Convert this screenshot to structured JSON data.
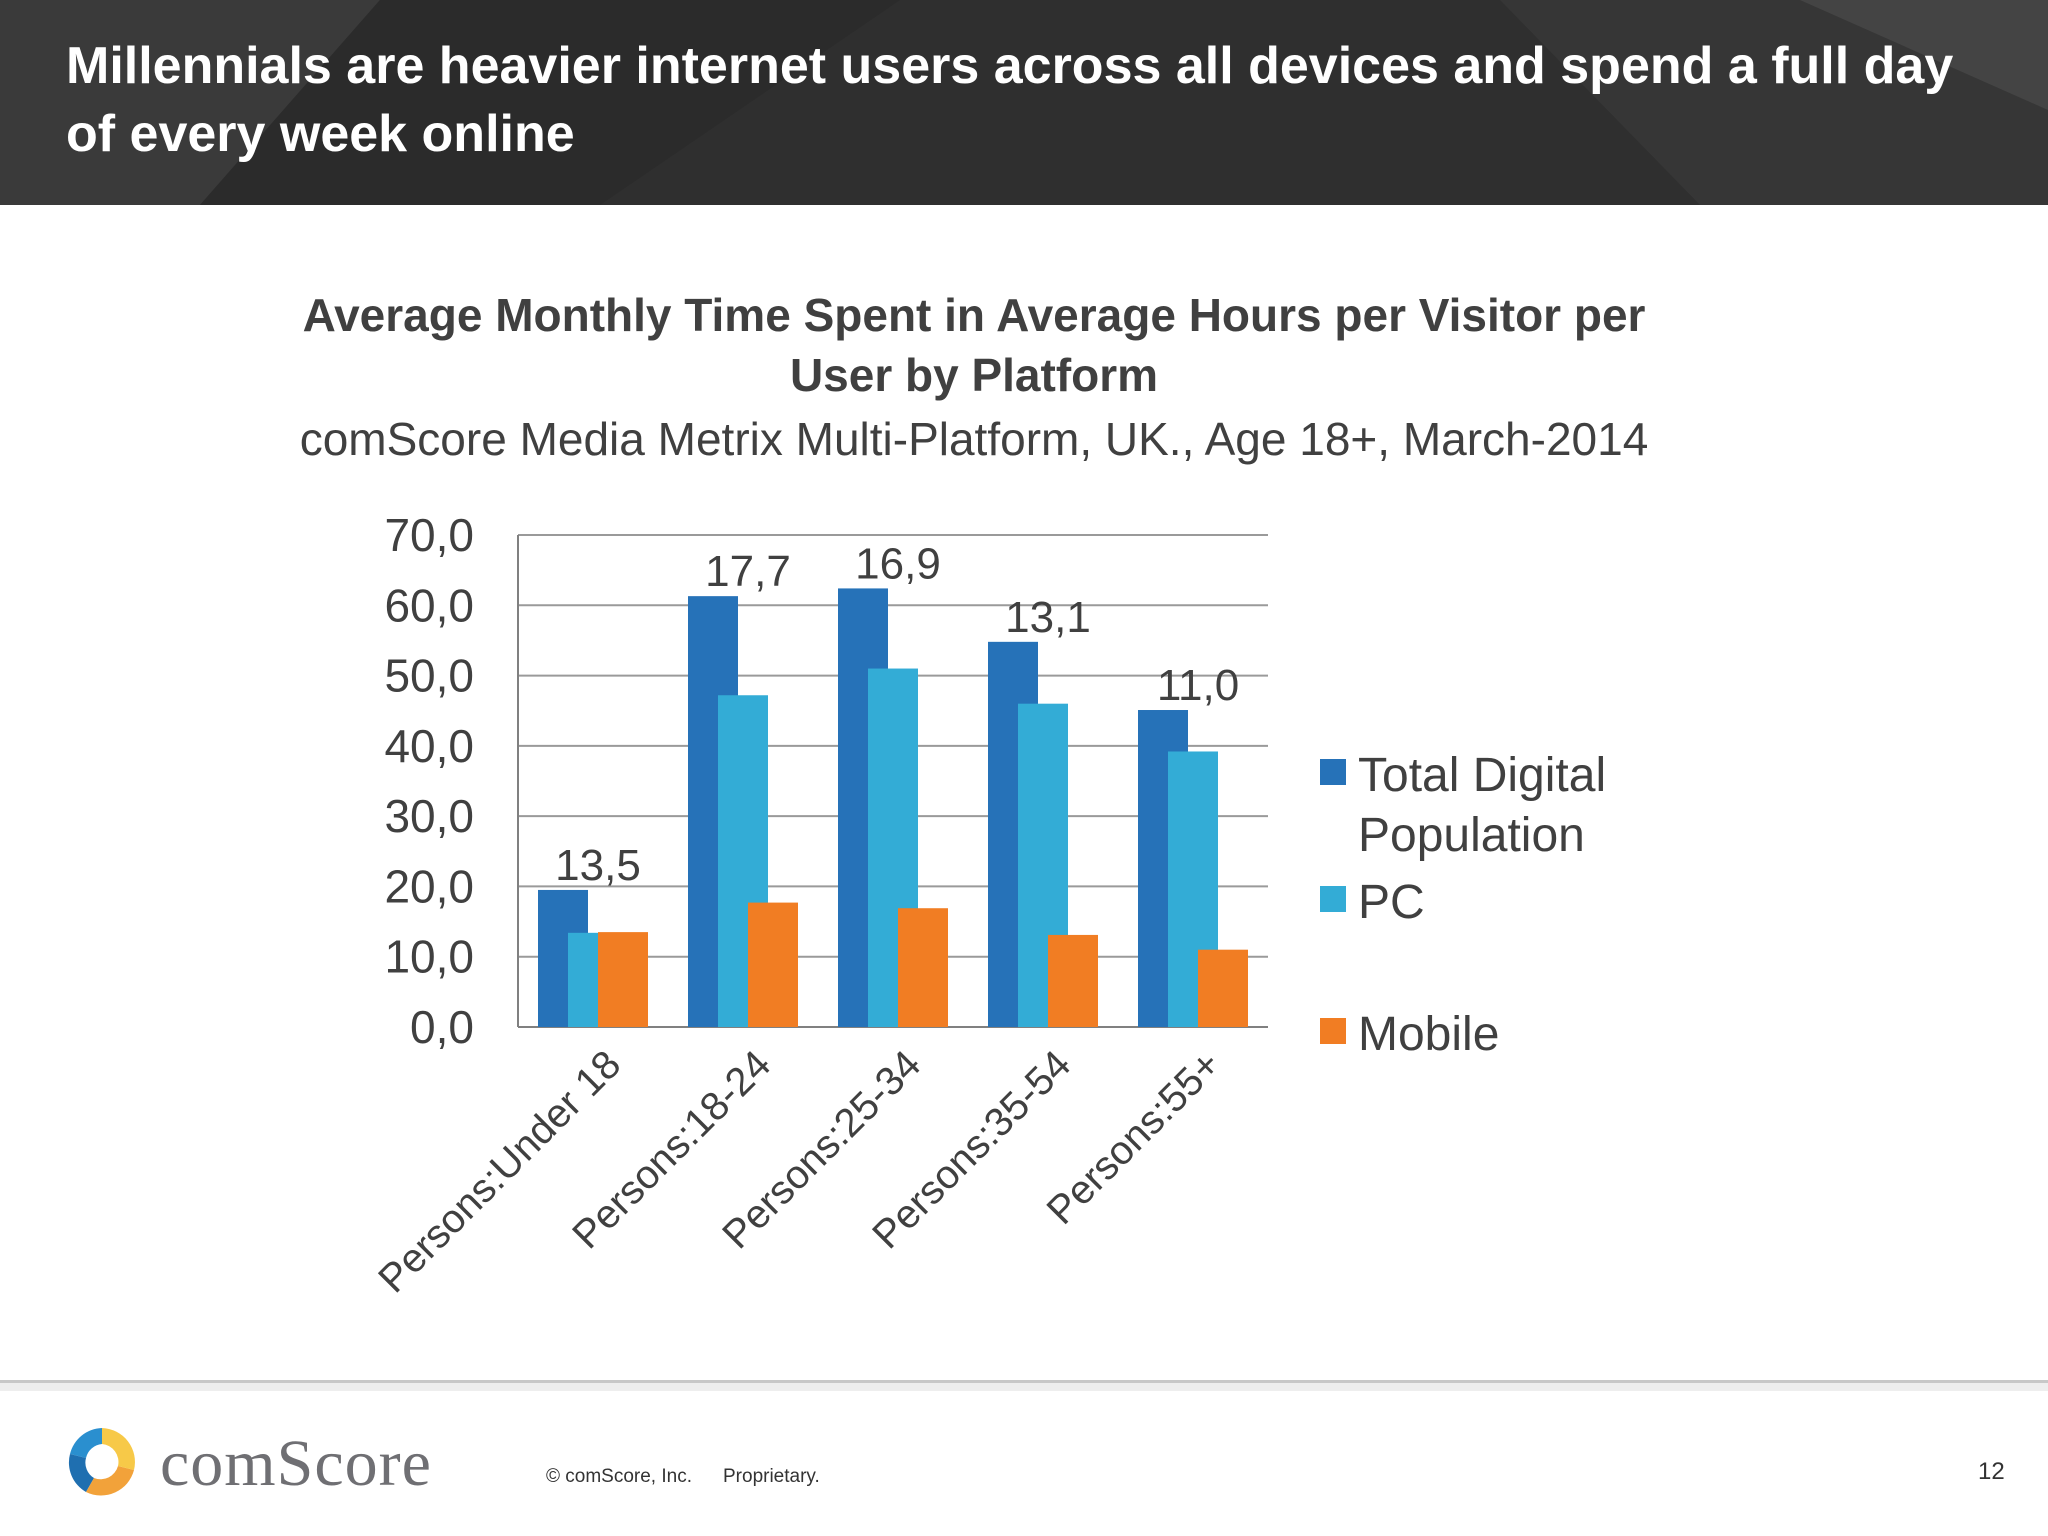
{
  "slide": {
    "title": "Millennials are heavier internet users across all devices and spend a full day of every week online",
    "header_color": "#2f2f2f"
  },
  "chart_data": {
    "type": "bar",
    "title": "Average Monthly Time Spent in Average Hours per Visitor per User by Platform",
    "subtitle": "comScore Media Metrix Multi-Platform, UK., Age 18+, March-2014",
    "categories": [
      "Persons:Under 18",
      "Persons:18-24",
      "Persons:25-34",
      "Persons:35-54",
      "Persons:55+"
    ],
    "series": [
      {
        "name": "Total Digital Population",
        "color": "#2672b8",
        "values": [
          19.5,
          61.3,
          62.4,
          54.8,
          45.1
        ]
      },
      {
        "name": "PC",
        "color": "#33acd6",
        "values": [
          13.4,
          47.2,
          51.0,
          46.0,
          39.2
        ]
      },
      {
        "name": "Mobile",
        "color": "#f17d23",
        "values": [
          13.5,
          17.7,
          16.9,
          13.1,
          11.0
        ]
      }
    ],
    "data_labels": [
      "13,5",
      "17,7",
      "16,9",
      "13,1",
      "11,0"
    ],
    "yticks": [
      "0,0",
      "10,0",
      "20,0",
      "30,0",
      "40,0",
      "50,0",
      "60,0",
      "70,0"
    ],
    "ylim": [
      0,
      70
    ],
    "xlabel": "",
    "ylabel": "",
    "grid": true,
    "legend_position": "right"
  },
  "footer": {
    "logo_text": "comScore",
    "copyright": "© comScore, Inc.",
    "proprietary": "Proprietary.",
    "page_number": "12"
  }
}
